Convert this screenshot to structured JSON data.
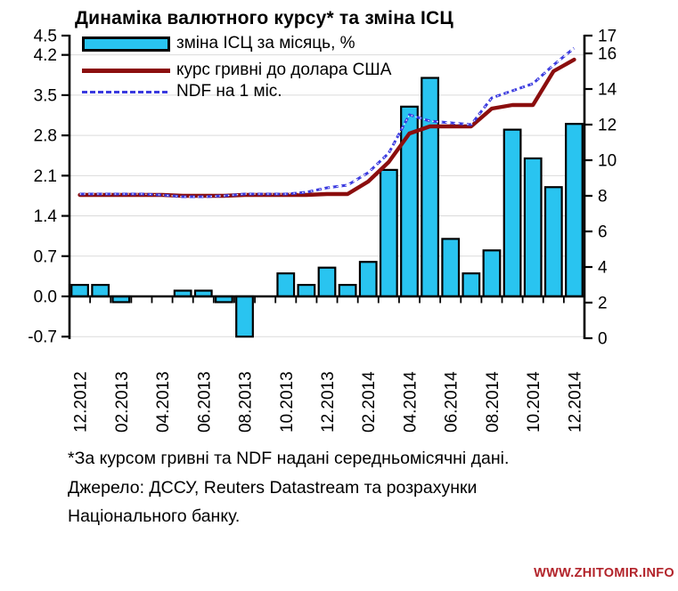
{
  "title": "Динаміка валютного курсу* та зміна ІСЦ",
  "legend": [
    {
      "label": "зміна ІСЦ за місяць, %"
    },
    {
      "label": "курс гривні до долара США"
    },
    {
      "label": "NDF на 1 міс."
    }
  ],
  "footnote": {
    "line1": "*За курсом гривні та NDF надані середньомісячні дані.",
    "line2": "Джерело: ДССУ, Reuters Datastream та розрахунки",
    "line3": "Національного банку."
  },
  "watermark": "WWW.ZHITOMIR.INFO",
  "colors": {
    "bar_fill": "#29C4F0",
    "bar_border": "#000000",
    "rate_line": "#8B0E0E",
    "ndf_line": "#3A3ADF",
    "grid": "#DBDBDB",
    "axis": "#000000",
    "watermark": "#B2232A"
  },
  "chart_data": {
    "type": "bar",
    "title": "Динаміка валютного курсу* та зміна ІСЦ",
    "categories": [
      "12.2012",
      "01.2013",
      "02.2013",
      "03.2013",
      "04.2013",
      "05.2013",
      "06.2013",
      "07.2013",
      "08.2013",
      "09.2013",
      "10.2013",
      "11.2013",
      "12.2013",
      "01.2014",
      "02.2014",
      "03.2014",
      "04.2014",
      "05.2014",
      "06.2014",
      "07.2014",
      "08.2014",
      "09.2014",
      "10.2014",
      "11.2014",
      "12.2014"
    ],
    "x_tick_labels": [
      "12.2012",
      "02.2013",
      "04.2013",
      "06.2013",
      "08.2013",
      "10.2013",
      "12.2013",
      "02.2014",
      "04.2014",
      "06.2014",
      "08.2014",
      "10.2014",
      "12.2014"
    ],
    "series": [
      {
        "name": "зміна ІСЦ за місяць, %",
        "type": "bar",
        "axis": "left",
        "color": "#29C4F0",
        "values": [
          0.2,
          0.2,
          -0.1,
          0.0,
          0.0,
          0.1,
          0.1,
          -0.1,
          -0.7,
          0.0,
          0.4,
          0.2,
          0.5,
          0.2,
          0.6,
          2.2,
          3.3,
          3.8,
          1.0,
          0.4,
          0.8,
          2.9,
          2.4,
          1.9,
          3.0
        ]
      },
      {
        "name": "курс гривні до долара США",
        "type": "line",
        "axis": "right",
        "color": "#8B0E0E",
        "values": [
          8.05,
          8.05,
          8.05,
          8.05,
          8.05,
          8.0,
          8.0,
          8.0,
          8.05,
          8.05,
          8.05,
          8.05,
          8.1,
          8.1,
          8.8,
          9.9,
          11.5,
          11.9,
          11.9,
          11.9,
          12.9,
          13.1,
          13.1,
          15.0,
          15.65
        ]
      },
      {
        "name": "NDF на 1 міс.",
        "type": "line-dashed",
        "axis": "right",
        "color": "#3A3ADF",
        "values": [
          8.1,
          8.1,
          8.1,
          8.1,
          8.05,
          7.95,
          7.95,
          8.0,
          8.1,
          8.1,
          8.1,
          8.2,
          8.45,
          8.6,
          9.3,
          10.4,
          12.55,
          12.2,
          12.1,
          12.0,
          13.5,
          13.9,
          14.3,
          15.35,
          16.3
        ]
      }
    ],
    "left_axis": {
      "min": -0.7,
      "max": 4.5,
      "tick_labels": [
        "4.5",
        "4.2",
        "3.5",
        "2.8",
        "2.1",
        "1.4",
        "0.7",
        "0.0",
        "-0.7"
      ],
      "grid_values": [
        4.2,
        3.5,
        2.8,
        2.1,
        1.4,
        0.7,
        -0.7
      ]
    },
    "right_axis": {
      "min": 0,
      "max": 17,
      "tick_labels": [
        "17",
        "16",
        "14",
        "12",
        "10",
        "8",
        "6",
        "4",
        "2",
        "0"
      ]
    },
    "grid": "horizontal-light",
    "legend_position": "top-left-inside"
  }
}
